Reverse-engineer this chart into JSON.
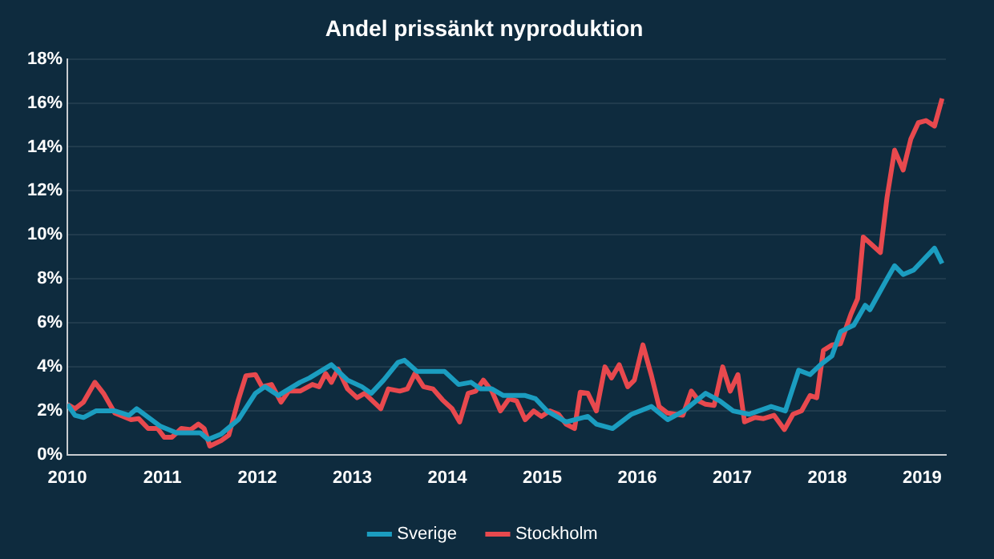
{
  "chart_data": {
    "type": "line",
    "title": "Andel prissänkt nyproduktion",
    "xlim": [
      2010,
      2019.25
    ],
    "xticks": [
      2010,
      2011,
      2012,
      2013,
      2014,
      2015,
      2016,
      2017,
      2018,
      2019
    ],
    "ylim": [
      0,
      18
    ],
    "yticks": [
      {
        "value": 0,
        "label": "0%"
      },
      {
        "value": 2,
        "label": "2%"
      },
      {
        "value": 4,
        "label": "4%"
      },
      {
        "value": 6,
        "label": "6%"
      },
      {
        "value": 8,
        "label": "8%"
      },
      {
        "value": 10,
        "label": "10%"
      },
      {
        "value": 12,
        "label": "12%"
      },
      {
        "value": 14,
        "label": "14%"
      },
      {
        "value": 16,
        "label": "16%"
      },
      {
        "value": 18,
        "label": "18%"
      }
    ],
    "grid": "y",
    "legend": "bottom",
    "marker": "none",
    "line_style": "solid",
    "series": [
      {
        "name": "Sverige",
        "color": "#1b9dc0",
        "x": [
          2010,
          2010.08,
          2010.17,
          2010.3,
          2010.5,
          2010.65,
          2010.73,
          2010.98,
          2011.15,
          2011.4,
          2011.48,
          2011.62,
          2011.8,
          2011.98,
          2012.08,
          2012.22,
          2012.45,
          2012.55,
          2012.78,
          2012.95,
          2013.1,
          2013.2,
          2013.33,
          2013.48,
          2013.55,
          2013.68,
          2013.97,
          2014.12,
          2014.25,
          2014.35,
          2014.47,
          2014.59,
          2014.82,
          2014.93,
          2015.05,
          2015.25,
          2015.48,
          2015.57,
          2015.74,
          2015.94,
          2016.15,
          2016.32,
          2016.49,
          2016.72,
          2016.87,
          2017.01,
          2017.18,
          2017.41,
          2017.56,
          2017.7,
          2017.82,
          2017.93,
          2018.05,
          2018.14,
          2018.28,
          2018.4,
          2018.45,
          2018.63,
          2018.71,
          2018.8,
          2018.91,
          2019.13,
          2019.21
        ],
        "values": [
          2.3,
          1.8,
          1.7,
          2.0,
          2.0,
          1.8,
          2.1,
          1.3,
          1.0,
          1.0,
          0.7,
          0.95,
          1.6,
          2.8,
          3.1,
          2.7,
          3.3,
          3.5,
          4.1,
          3.4,
          3.1,
          2.8,
          3.4,
          4.2,
          4.3,
          3.8,
          3.8,
          3.2,
          3.3,
          3.0,
          3.0,
          2.7,
          2.7,
          2.55,
          2.0,
          1.5,
          1.75,
          1.4,
          1.2,
          1.85,
          2.2,
          1.6,
          2.0,
          2.8,
          2.45,
          2.0,
          1.85,
          2.2,
          2.0,
          3.85,
          3.65,
          4.1,
          4.5,
          5.6,
          5.9,
          6.8,
          6.6,
          8.0,
          8.6,
          8.2,
          8.4,
          9.4,
          8.7
        ]
      },
      {
        "name": "Stockholm",
        "color": "#e8494e",
        "x": [
          2010,
          2010.08,
          2010.17,
          2010.29,
          2010.38,
          2010.5,
          2010.67,
          2010.75,
          2010.85,
          2010.95,
          2011.02,
          2011.1,
          2011.2,
          2011.3,
          2011.38,
          2011.44,
          2011.5,
          2011.62,
          2011.7,
          2011.8,
          2011.88,
          2011.98,
          2012.05,
          2012.15,
          2012.25,
          2012.33,
          2012.45,
          2012.58,
          2012.65,
          2012.72,
          2012.78,
          2012.85,
          2012.95,
          2013.05,
          2013.13,
          2013.3,
          2013.38,
          2013.5,
          2013.58,
          2013.66,
          2013.75,
          2013.85,
          2013.95,
          2014.05,
          2014.13,
          2014.22,
          2014.3,
          2014.38,
          2014.47,
          2014.56,
          2014.65,
          2014.73,
          2014.82,
          2014.91,
          2014.99,
          2015.08,
          2015.17,
          2015.25,
          2015.34,
          2015.4,
          2015.48,
          2015.57,
          2015.66,
          2015.73,
          2015.81,
          2015.9,
          2015.97,
          2016.06,
          2016.15,
          2016.23,
          2016.32,
          2016.48,
          2016.57,
          2016.65,
          2016.72,
          2016.81,
          2016.9,
          2016.98,
          2017.06,
          2017.13,
          2017.24,
          2017.33,
          2017.44,
          2017.55,
          2017.64,
          2017.73,
          2017.82,
          2017.89,
          2017.96,
          2018.05,
          2018.14,
          2018.25,
          2018.32,
          2018.38,
          2018.56,
          2018.63,
          2018.71,
          2018.8,
          2018.88,
          2018.96,
          2019.04,
          2019.13,
          2019.21
        ],
        "values": [
          2.3,
          2.1,
          2.4,
          3.3,
          2.8,
          1.9,
          1.6,
          1.65,
          1.2,
          1.2,
          0.8,
          0.8,
          1.2,
          1.15,
          1.4,
          1.2,
          0.4,
          0.65,
          0.9,
          2.5,
          3.6,
          3.65,
          3.1,
          3.2,
          2.4,
          2.9,
          2.9,
          3.2,
          3.1,
          3.7,
          3.3,
          3.9,
          3.0,
          2.6,
          2.8,
          2.1,
          3.0,
          2.9,
          3.0,
          3.7,
          3.1,
          3.0,
          2.5,
          2.1,
          1.5,
          2.8,
          2.9,
          3.4,
          2.9,
          2.0,
          2.55,
          2.45,
          1.6,
          2.0,
          1.75,
          2.0,
          1.85,
          1.4,
          1.2,
          2.85,
          2.8,
          2.0,
          4.0,
          3.5,
          4.1,
          3.1,
          3.4,
          5.0,
          3.6,
          2.2,
          1.9,
          1.8,
          2.9,
          2.45,
          2.3,
          2.25,
          4.0,
          2.9,
          3.65,
          1.5,
          1.7,
          1.65,
          1.8,
          1.15,
          1.85,
          2.0,
          2.7,
          2.6,
          4.75,
          5.0,
          5.05,
          6.4,
          7.1,
          9.9,
          9.2,
          11.7,
          13.85,
          12.95,
          14.35,
          15.1,
          15.2,
          14.95,
          16.2
        ]
      }
    ]
  }
}
